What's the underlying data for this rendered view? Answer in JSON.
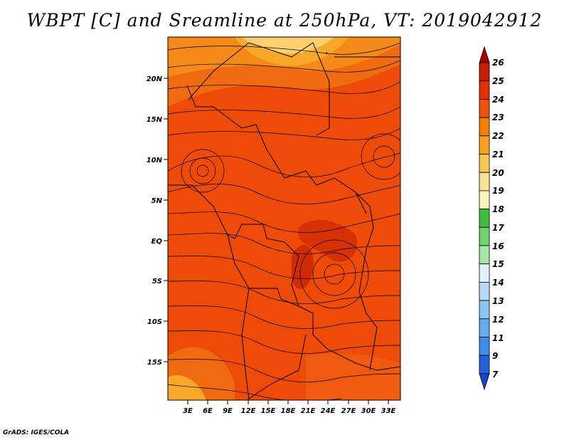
{
  "title": "WBPT [C] and Sreamline at 250hPa, VT: 2019042912",
  "credit": "GrADS: IGES/COLA",
  "map": {
    "lat_labels": [
      "20N",
      "15N",
      "10N",
      "5N",
      "EQ",
      "5S",
      "10S",
      "15S"
    ],
    "lon_labels": [
      "3E",
      "6E",
      "9E",
      "12E",
      "15E",
      "18E",
      "21E",
      "24E",
      "27E",
      "30E",
      "33E"
    ]
  },
  "colorbar": {
    "labels": [
      "26",
      "25",
      "24",
      "23",
      "22",
      "21",
      "20",
      "19",
      "18",
      "17",
      "16",
      "15",
      "14",
      "13",
      "12",
      "11",
      "9",
      "7"
    ],
    "colors": [
      "#a50000",
      "#c81e00",
      "#e03000",
      "#f05010",
      "#f88000",
      "#f8a020",
      "#f8c850",
      "#fae29a",
      "#fcf5c0",
      "#3dbf3d",
      "#6fd46f",
      "#a6e6a6",
      "#e0f4f8",
      "#b4dcf8",
      "#8cc4f4",
      "#64acf0",
      "#3c8ce8",
      "#1e64d8",
      "#1446c8"
    ]
  }
}
